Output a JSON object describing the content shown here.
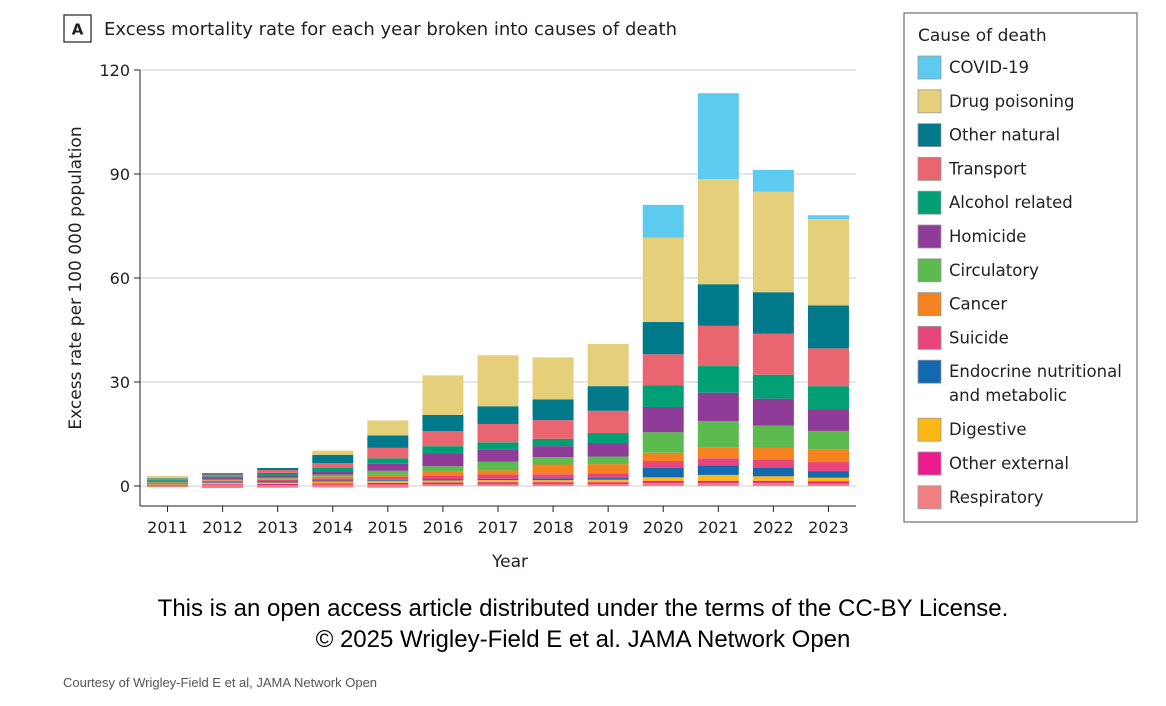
{
  "panel_label": "A",
  "license_line_1": "This is an open access article distributed under the terms of the CC-BY License.",
  "license_line_2": "© 2025 Wrigley-Field E et al. JAMA Network Open",
  "credit": "Courtesy of Wrigley-Field E et al, JAMA Network Open",
  "chart_data": {
    "type": "bar",
    "stacked": true,
    "title": "Excess mortality rate for each year broken into causes of death",
    "xlabel": "Year",
    "ylabel": "Excess rate per 100 000 population",
    "ylim": [
      -5,
      120
    ],
    "yticks": [
      0,
      30,
      60,
      90,
      120
    ],
    "grid": true,
    "legend_title": "Cause of death",
    "legend_position": "right",
    "categories": [
      "2011",
      "2012",
      "2013",
      "2014",
      "2015",
      "2016",
      "2017",
      "2018",
      "2019",
      "2020",
      "2021",
      "2022",
      "2023"
    ],
    "series": [
      {
        "name": "Respiratory",
        "color": "#f08080",
        "values": [
          0,
          0.2,
          0.3,
          0.4,
          0.4,
          0.5,
          0.6,
          0.6,
          0.6,
          0.9,
          0.9,
          0.9,
          0.7
        ]
      },
      {
        "name": "Other external",
        "color": "#ec1c8c",
        "values": [
          0.2,
          0.3,
          0.3,
          0.4,
          0.5,
          0.5,
          0.5,
          0.5,
          0.5,
          0.6,
          0.6,
          0.6,
          0.6
        ]
      },
      {
        "name": "Digestive",
        "color": "#fdb813",
        "values": [
          0.3,
          0.4,
          0.4,
          0.5,
          0.6,
          0.6,
          0.6,
          0.6,
          0.7,
          1.0,
          1.7,
          1.3,
          1.1
        ]
      },
      {
        "name": "Endocrine nutritional and metabolic",
        "color": "#1269b0",
        "values": [
          0.1,
          0.2,
          0.3,
          0.3,
          0.3,
          0.4,
          0.4,
          0.5,
          0.5,
          2.7,
          2.8,
          2.5,
          1.9
        ]
      },
      {
        "name": "Suicide",
        "color": "#e8457a",
        "values": [
          0.3,
          0.4,
          0.5,
          0.6,
          0.8,
          1.0,
          1.2,
          1.2,
          1.4,
          2.0,
          2.0,
          2.4,
          2.6
        ]
      },
      {
        "name": "Cancer",
        "color": "#f5821f",
        "values": [
          0.1,
          0.2,
          0.3,
          0.5,
          0.6,
          1.1,
          1.2,
          2.8,
          2.6,
          2.4,
          3.2,
          3.4,
          3.6
        ]
      },
      {
        "name": "Circulatory",
        "color": "#5bbb4f",
        "values": [
          0.1,
          0.2,
          0.3,
          0.6,
          1.2,
          1.6,
          2.5,
          2.1,
          2.2,
          5.9,
          7.5,
          6.3,
          5.4
        ]
      },
      {
        "name": "Homicide",
        "color": "#8e3c97",
        "values": [
          0.3,
          0.4,
          0.6,
          1.0,
          2.0,
          3.8,
          3.6,
          3.2,
          3.9,
          7.3,
          8.2,
          7.8,
          6.3
        ]
      },
      {
        "name": "Alcohol related",
        "color": "#00a074",
        "values": [
          0.3,
          0.5,
          0.8,
          1.0,
          1.6,
          2.0,
          2.0,
          2.1,
          2.9,
          6.2,
          7.7,
          6.9,
          6.6
        ]
      },
      {
        "name": "Transport",
        "color": "#e96570",
        "values": [
          0.3,
          0.5,
          0.8,
          1.3,
          3.0,
          4.3,
          5.3,
          5.4,
          6.4,
          9.0,
          11.6,
          11.8,
          10.9
        ]
      },
      {
        "name": "Other natural",
        "color": "#007a8a",
        "values": [
          0.2,
          0.4,
          0.6,
          2.4,
          3.6,
          4.7,
          5.1,
          6.0,
          7.1,
          9.3,
          12.0,
          12.0,
          12.4
        ]
      },
      {
        "name": "Drug poisoning",
        "color": "#e5cf7a",
        "values": [
          0.7,
          0,
          0,
          1.2,
          4.3,
          11.4,
          14.7,
          12.1,
          12.2,
          24.3,
          30.3,
          29.0,
          24.9
        ]
      },
      {
        "name": "COVID-19",
        "color": "#5dcbef",
        "values": [
          0,
          0,
          0,
          0,
          0,
          0,
          0,
          0,
          0,
          9.5,
          24.8,
          6.3,
          1.1
        ]
      }
    ],
    "negatives": [
      {
        "name": "Respiratory",
        "values": [
          -0.3,
          -0.6,
          -0.5,
          -0.4,
          -0.5,
          0,
          0,
          0,
          0,
          0,
          0,
          0,
          0
        ]
      }
    ],
    "legend_order": [
      "COVID-19",
      "Drug poisoning",
      "Other natural",
      "Transport",
      "Alcohol related",
      "Homicide",
      "Circulatory",
      "Cancer",
      "Suicide",
      "Endocrine nutritional and metabolic",
      "Digestive",
      "Other external",
      "Respiratory"
    ]
  }
}
